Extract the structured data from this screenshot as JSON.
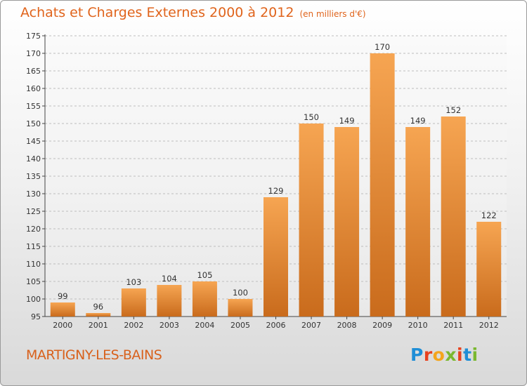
{
  "title": "Achats et Charges Externes 2000 à 2012",
  "unit": "(en milliers d'€)",
  "location": "MARTIGNY-LES-BAINS",
  "brand": "Proxiti",
  "colors": {
    "title": "#e0641c",
    "bar_top": "#f6a552",
    "bar_bottom": "#c96b1c",
    "logo": [
      "#1f8ed6",
      "#e8411e",
      "#f4a51c",
      "#7ab82f",
      "#e8411e",
      "#1f8ed6",
      "#7ab82f"
    ]
  },
  "chart_data": {
    "type": "bar",
    "categories": [
      "2000",
      "2001",
      "2002",
      "2003",
      "2004",
      "2005",
      "2006",
      "2007",
      "2008",
      "2009",
      "2010",
      "2011",
      "2012"
    ],
    "values": [
      99,
      96,
      103,
      104,
      105,
      100,
      129,
      150,
      149,
      170,
      149,
      152,
      122
    ],
    "ylim": [
      95,
      175
    ],
    "yticks": [
      95,
      100,
      105,
      110,
      115,
      120,
      125,
      130,
      135,
      140,
      145,
      150,
      155,
      160,
      165,
      170,
      175
    ],
    "grid": true
  }
}
